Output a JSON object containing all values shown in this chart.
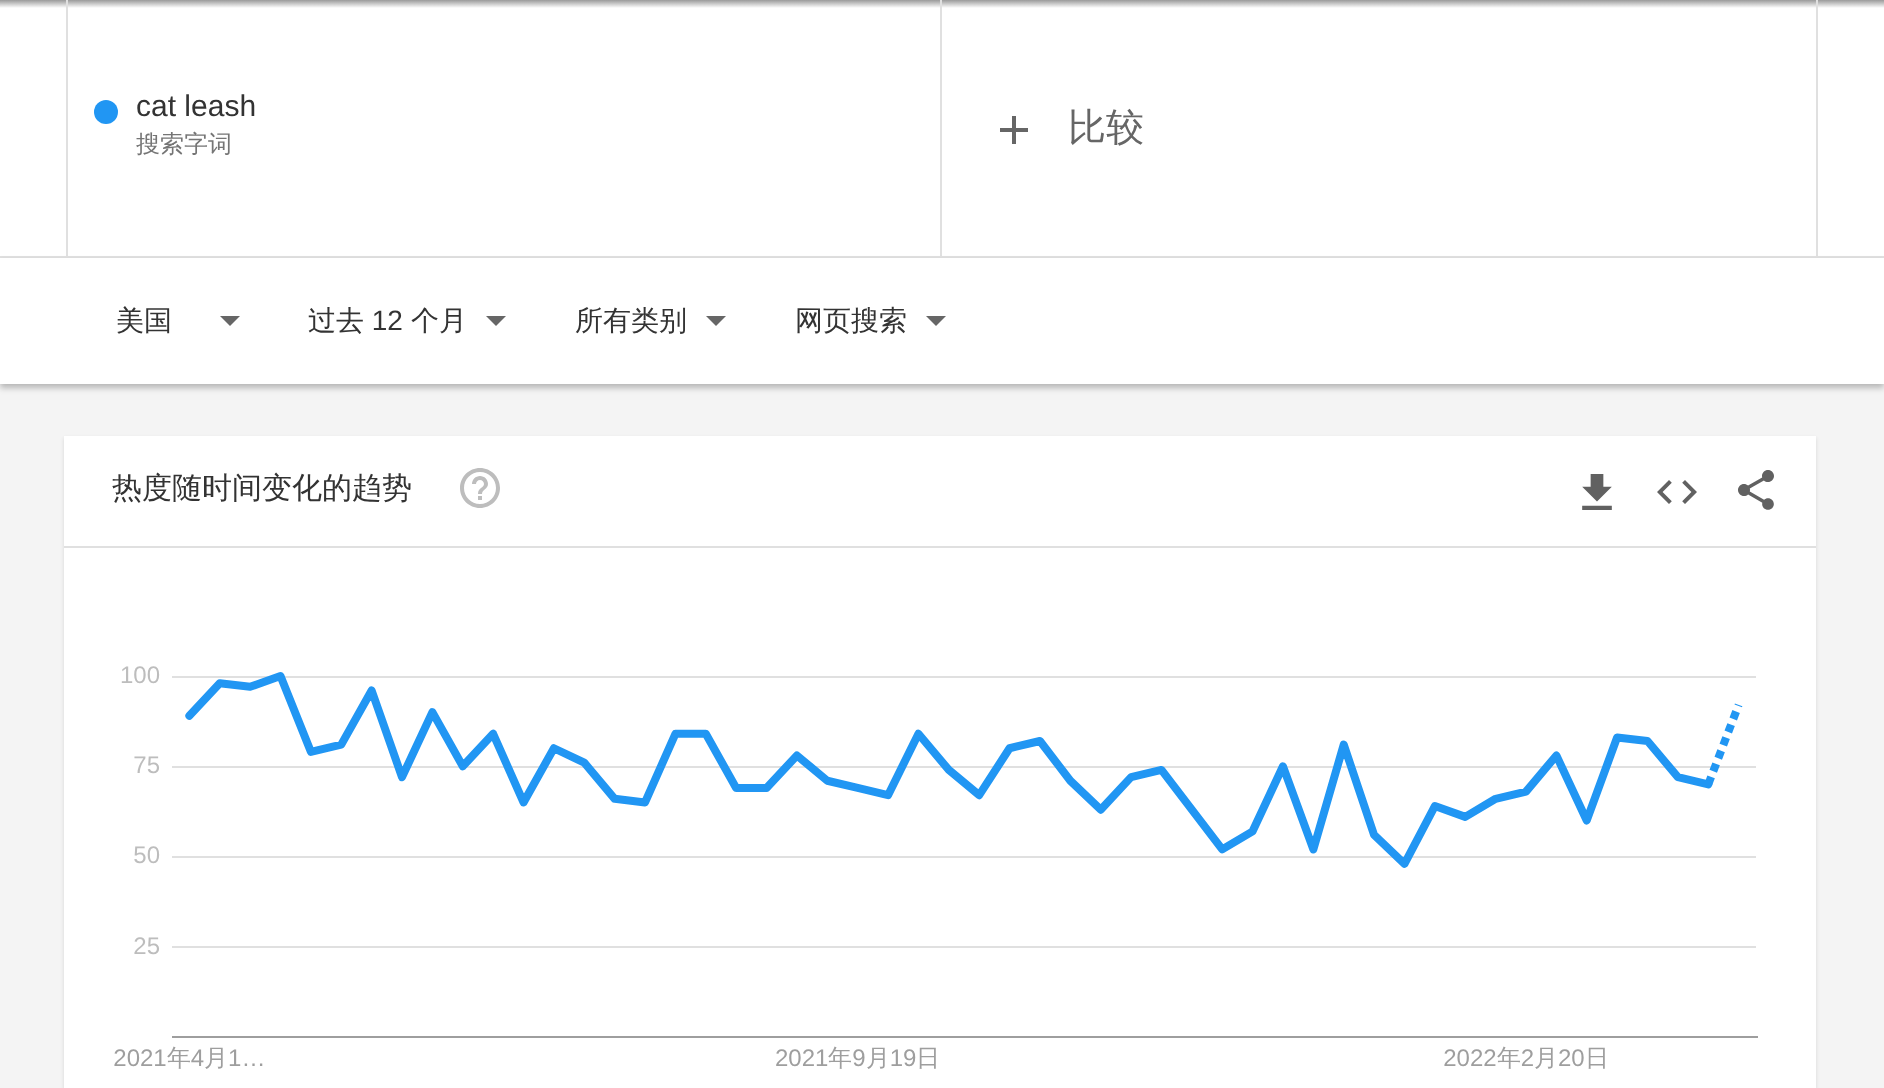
{
  "chart_data": {
    "type": "line",
    "title": "热度随时间变化的趋势",
    "annotations": [
      "搜索字词",
      "比较",
      "美国",
      "过去 12 个月",
      "所有类别",
      "网页搜索"
    ],
    "x": [
      "2021-04-18",
      "2021-04-25",
      "2021-05-02",
      "2021-05-09",
      "2021-05-16",
      "2021-05-23",
      "2021-05-30",
      "2021-06-06",
      "2021-06-13",
      "2021-06-20",
      "2021-06-27",
      "2021-07-04",
      "2021-07-11",
      "2021-07-18",
      "2021-07-25",
      "2021-08-01",
      "2021-08-08",
      "2021-08-15",
      "2021-08-22",
      "2021-08-29",
      "2021-09-05",
      "2021-09-12",
      "2021-09-19",
      "2021-09-26",
      "2021-10-03",
      "2021-10-10",
      "2021-10-17",
      "2021-10-24",
      "2021-10-31",
      "2021-11-07",
      "2021-11-14",
      "2021-11-21",
      "2021-11-28",
      "2021-12-05",
      "2021-12-12",
      "2021-12-19",
      "2021-12-26",
      "2022-01-02",
      "2022-01-09",
      "2022-01-16",
      "2022-01-23",
      "2022-01-30",
      "2022-02-06",
      "2022-02-13",
      "2022-02-20",
      "2022-02-27",
      "2022-03-06",
      "2022-03-13",
      "2022-03-20",
      "2022-03-27",
      "2022-04-03"
    ],
    "series": [
      {
        "name": "cat leash",
        "color": "#2196f3",
        "line_style": "solid",
        "values": [
          89,
          98,
          97,
          100,
          79,
          81,
          96,
          72,
          90,
          75,
          84,
          65,
          80,
          76,
          66,
          65,
          84,
          84,
          69,
          69,
          78,
          71,
          69,
          67,
          84,
          74,
          67,
          80,
          82,
          71,
          63,
          72,
          74,
          63,
          52,
          57,
          75,
          52,
          81,
          56,
          48,
          64,
          61,
          66,
          68,
          78,
          60,
          83,
          82,
          72,
          70
        ]
      },
      {
        "color": "#2196f3",
        "line_style": "dotted",
        "x": [
          "2022-04-03",
          "2022-04-10"
        ],
        "values": [
          70,
          92
        ]
      }
    ],
    "xlim": [
      "2021-04-14",
      "2022-04-14"
    ],
    "xticks": [
      {
        "value": "2021-04-18",
        "label": "2021年4月1…"
      },
      {
        "value": "2021-09-19",
        "label": "2021年9月19日"
      },
      {
        "value": "2022-02-20",
        "label": "2022年2月20日"
      }
    ],
    "ylim": [
      0,
      100
    ],
    "yticks": [
      25,
      50,
      75,
      100
    ],
    "grid": "y",
    "legend": "top left",
    "marker": "none"
  }
}
